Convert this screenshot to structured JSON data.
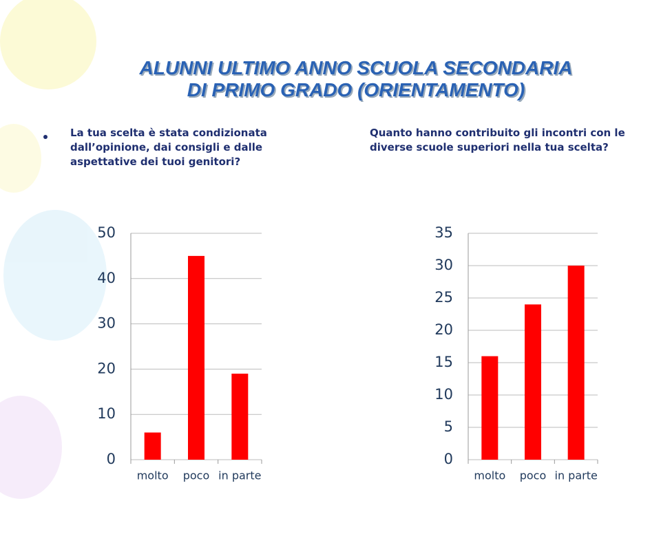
{
  "slide_title": [
    "ALUNNI ULTIMO ANNO SCUOLA SECONDARIA",
    "DI PRIMO GRADO (ORIENTAMENTO)"
  ],
  "chart_data": [
    {
      "type": "bar",
      "title": [
        "La tua scelta è stata condizionata",
        "dall’opinione, dai consigli e dalle",
        "aspettative dei tuoi genitori?"
      ],
      "categories": [
        "molto",
        "poco",
        "in parte"
      ],
      "values": [
        6,
        45,
        19
      ],
      "color": "#ff0000",
      "ylim": [
        0,
        50
      ],
      "yticks": [
        0,
        10,
        20,
        30,
        40,
        50
      ],
      "grid": true
    },
    {
      "type": "bar",
      "title": [
        "Quanto hanno contribuito gli incontri con le",
        "diverse scuole superiori nella tua scelta?"
      ],
      "categories": [
        "molto",
        "poco",
        "in parte"
      ],
      "values": [
        16,
        24,
        30
      ],
      "color": "#ff0000",
      "ylim": [
        0,
        35
      ],
      "yticks": [
        0,
        5,
        10,
        15,
        20,
        25,
        30,
        35
      ],
      "grid": true
    }
  ]
}
